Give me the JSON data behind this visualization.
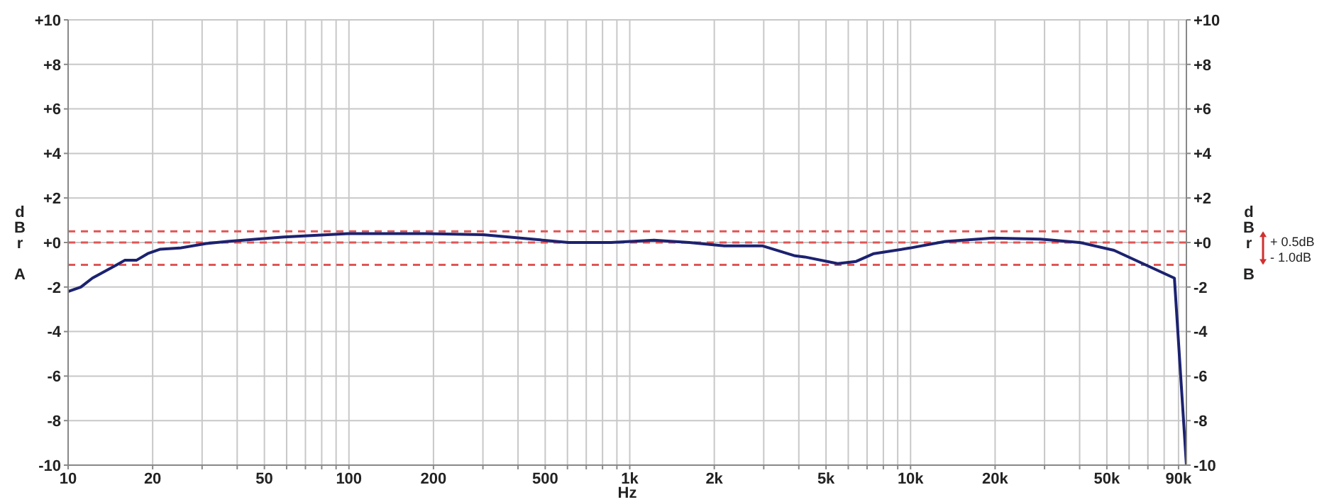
{
  "chart_data": {
    "type": "line",
    "xlabel": "Hz",
    "ylabel": "dBr A",
    "y2label": "dBr B",
    "log": "x",
    "x": [
      10,
      11.1,
      12.2,
      14.9,
      15.9,
      17.5,
      19.2,
      21.3,
      25,
      31,
      36.9,
      58.7,
      99,
      188,
      300,
      605,
      857,
      1220,
      1630,
      2170,
      2960,
      3880,
      4200,
      5500,
      6400,
      7400,
      9930,
      13300,
      19700,
      29000,
      40000,
      53000,
      87000,
      96000
    ],
    "series": [
      {
        "color": "#1c2270",
        "values": [
          -2.2,
          -2.0,
          -1.6,
          -1.0,
          -0.8,
          -0.8,
          -0.5,
          -0.3,
          -0.25,
          -0.05,
          0.05,
          0.25,
          0.4,
          0.4,
          0.35,
          0.0,
          0.0,
          0.1,
          0.0,
          -0.15,
          -0.15,
          -0.6,
          -0.65,
          -0.95,
          -0.85,
          -0.5,
          -0.25,
          0.05,
          0.2,
          0.15,
          0.0,
          -0.35,
          -1.6,
          -10
        ]
      }
    ],
    "xlim": [
      10,
      96000
    ],
    "xticks": [
      10,
      20,
      {
        "value": 30,
        "label": null
      },
      {
        "value": 40,
        "label": null
      },
      50,
      {
        "value": 60,
        "label": null
      },
      {
        "value": 70,
        "label": null
      },
      {
        "value": 80,
        "label": null
      },
      {
        "value": 90,
        "label": null
      },
      100,
      200,
      {
        "value": 300,
        "label": null
      },
      {
        "value": 400,
        "label": null
      },
      500,
      {
        "value": 600,
        "label": null
      },
      {
        "value": 700,
        "label": null
      },
      {
        "value": 800,
        "label": null
      },
      {
        "value": 900,
        "label": null
      },
      {
        "value": 1000,
        "label": "1k"
      },
      {
        "value": 2000,
        "label": "2k"
      },
      {
        "value": 3000,
        "label": null
      },
      {
        "value": 4000,
        "label": null
      },
      {
        "value": 5000,
        "label": "5k"
      },
      {
        "value": 6000,
        "label": null
      },
      {
        "value": 7000,
        "label": null
      },
      {
        "value": 8000,
        "label": null
      },
      {
        "value": 9000,
        "label": null
      },
      {
        "value": 10000,
        "label": "10k"
      },
      {
        "value": 20000,
        "label": "20k"
      },
      {
        "value": 30000,
        "label": null
      },
      {
        "value": 40000,
        "label": null
      },
      {
        "value": 50000,
        "label": "50k"
      },
      {
        "value": 60000,
        "label": null
      },
      {
        "value": 70000,
        "label": null
      },
      {
        "value": 80000,
        "label": null
      },
      {
        "value": 90000,
        "label": "90k"
      }
    ],
    "ylim": [
      -10,
      10
    ],
    "yticks": [
      -10,
      -8,
      -6,
      -4,
      -2,
      {
        "value": 0,
        "label": "+0"
      },
      {
        "value": 2,
        "label": "+2"
      },
      {
        "value": 4,
        "label": "+4"
      },
      {
        "value": 6,
        "label": "+6"
      },
      {
        "value": 8,
        "label": "+8"
      },
      {
        "value": 10,
        "label": "+10"
      }
    ],
    "y2lim": [
      -10,
      10
    ],
    "y2ticks": [
      -10,
      -8,
      -6,
      -4,
      -2,
      {
        "value": 0,
        "label": "+0"
      },
      {
        "value": 2,
        "label": "+2"
      },
      {
        "value": 4,
        "label": "+4"
      },
      {
        "value": 6,
        "label": "+6"
      },
      {
        "value": 8,
        "label": "+8"
      },
      {
        "value": 10,
        "label": "+10"
      }
    ],
    "grid": true,
    "ref_lines": [
      {
        "axis": "y",
        "value": 0.5,
        "color": "#e05555",
        "line_style": "dashed"
      },
      {
        "axis": "y",
        "value": 0,
        "color": "#e05555",
        "line_style": "dashed"
      },
      {
        "axis": "y",
        "value": -1,
        "color": "#e05555",
        "line_style": "dashed"
      }
    ],
    "annotations": [
      "+ 0.5dB",
      "- 1.0dB"
    ]
  }
}
